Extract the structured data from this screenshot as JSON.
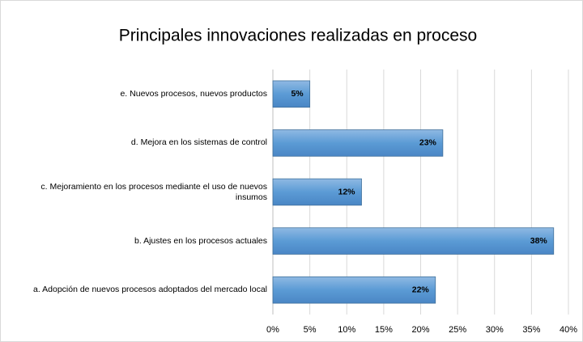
{
  "chart_data": {
    "type": "bar",
    "orientation": "horizontal",
    "title": "Principales innovaciones realizadas en proceso",
    "categories": [
      "e. Nuevos procesos, nuevos productos",
      "d. Mejora en los sistemas de control",
      "c. Mejoramiento en los procesos mediante el uso de nuevos insumos",
      "b. Ajustes en los procesos actuales",
      "a. Adopción de nuevos procesos adoptados del mercado local"
    ],
    "values": [
      5,
      23,
      12,
      38,
      22
    ],
    "value_labels": [
      "5%",
      "23%",
      "12%",
      "38%",
      "22%"
    ],
    "color": "#5b9bd5",
    "xlim": [
      0,
      40
    ],
    "xticks": [
      {
        "value": 0,
        "label": "0%"
      },
      {
        "value": 5,
        "label": "5%"
      },
      {
        "value": 10,
        "label": "10%"
      },
      {
        "value": 15,
        "label": "15%"
      },
      {
        "value": 20,
        "label": "20%"
      },
      {
        "value": 25,
        "label": "25%"
      },
      {
        "value": 30,
        "label": "30%"
      },
      {
        "value": 35,
        "label": "35%"
      },
      {
        "value": 40,
        "label": "40%"
      }
    ],
    "grid": true
  }
}
